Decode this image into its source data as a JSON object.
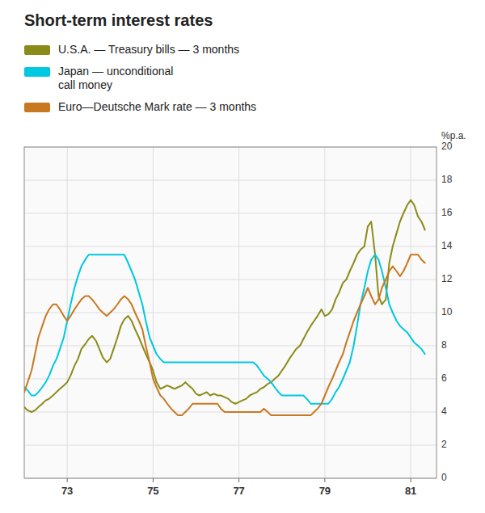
{
  "chart_data": {
    "type": "line",
    "title": "Short-term interest rates",
    "ylabel": "%p.a.",
    "xlim": [
      1972.0,
      1981.6
    ],
    "xticks": [
      {
        "value": 1973,
        "label": "73"
      },
      {
        "value": 1975,
        "label": "75"
      },
      {
        "value": 1977,
        "label": "77"
      },
      {
        "value": 1979,
        "label": "79"
      },
      {
        "value": 1981,
        "label": "81"
      }
    ],
    "ylim": [
      0,
      20
    ],
    "yticks": [
      0,
      2,
      4,
      6,
      8,
      10,
      12,
      14,
      16,
      18,
      20
    ],
    "grid": true,
    "legend": "top",
    "x": [
      1972.0,
      1972.08,
      1972.17,
      1972.25,
      1972.33,
      1972.42,
      1972.5,
      1972.58,
      1972.67,
      1972.75,
      1972.83,
      1972.92,
      1973.0,
      1973.08,
      1973.17,
      1973.25,
      1973.33,
      1973.42,
      1973.5,
      1973.58,
      1973.67,
      1973.75,
      1973.83,
      1973.92,
      1974.0,
      1974.08,
      1974.17,
      1974.25,
      1974.33,
      1974.42,
      1974.5,
      1974.58,
      1974.67,
      1974.75,
      1974.83,
      1974.92,
      1975.0,
      1975.08,
      1975.17,
      1975.25,
      1975.33,
      1975.42,
      1975.5,
      1975.58,
      1975.67,
      1975.75,
      1975.83,
      1975.92,
      1976.0,
      1976.08,
      1976.17,
      1976.25,
      1976.33,
      1976.42,
      1976.5,
      1976.58,
      1976.67,
      1976.75,
      1976.83,
      1976.92,
      1977.0,
      1977.08,
      1977.17,
      1977.25,
      1977.33,
      1977.42,
      1977.5,
      1977.58,
      1977.67,
      1977.75,
      1977.83,
      1977.92,
      1978.0,
      1978.08,
      1978.17,
      1978.25,
      1978.33,
      1978.42,
      1978.5,
      1978.58,
      1978.67,
      1978.75,
      1978.83,
      1978.92,
      1979.0,
      1979.08,
      1979.17,
      1979.25,
      1979.33,
      1979.42,
      1979.5,
      1979.58,
      1979.67,
      1979.75,
      1979.83,
      1979.92,
      1980.0,
      1980.08,
      1980.17,
      1980.25,
      1980.33,
      1980.42,
      1980.5,
      1980.58,
      1980.67,
      1980.75,
      1980.83,
      1980.92,
      1981.0,
      1981.08,
      1981.17,
      1981.25,
      1981.33
    ],
    "series": [
      {
        "name": "U.S.A. — Treasury bills — 3 months",
        "color": "#8b8b1a",
        "values": [
          4.3,
          4.1,
          4.0,
          4.1,
          4.3,
          4.5,
          4.7,
          4.8,
          5.0,
          5.2,
          5.4,
          5.6,
          5.8,
          6.2,
          6.8,
          7.2,
          7.8,
          8.1,
          8.4,
          8.6,
          8.3,
          7.8,
          7.3,
          7.0,
          7.2,
          7.8,
          8.5,
          9.2,
          9.6,
          9.8,
          9.5,
          9.0,
          8.5,
          8.0,
          7.5,
          7.0,
          6.5,
          5.8,
          5.4,
          5.5,
          5.6,
          5.5,
          5.4,
          5.5,
          5.6,
          5.8,
          5.6,
          5.4,
          5.1,
          5.0,
          5.1,
          5.2,
          5.0,
          5.1,
          5.0,
          5.0,
          4.9,
          4.8,
          4.6,
          4.5,
          4.6,
          4.7,
          4.8,
          5.0,
          5.1,
          5.2,
          5.4,
          5.5,
          5.7,
          5.8,
          6.0,
          6.2,
          6.5,
          6.8,
          7.2,
          7.5,
          7.8,
          8.0,
          8.4,
          8.8,
          9.2,
          9.5,
          9.8,
          10.2,
          9.8,
          9.9,
          10.2,
          10.8,
          11.2,
          11.8,
          12.0,
          12.5,
          13.0,
          13.5,
          13.8,
          14.0,
          15.2,
          15.5,
          13.5,
          11.0,
          10.5,
          10.8,
          13.0,
          14.0,
          14.8,
          15.5,
          16.0,
          16.5,
          16.8,
          16.5,
          15.8,
          15.5,
          15.0
        ]
      },
      {
        "name": "Japan — unconditional\ncall money",
        "color": "#00c8e0",
        "values": [
          5.5,
          5.3,
          5.0,
          5.0,
          5.2,
          5.5,
          5.8,
          6.2,
          6.8,
          7.2,
          7.8,
          8.5,
          9.5,
          10.5,
          11.5,
          12.2,
          12.8,
          13.2,
          13.5,
          13.5,
          13.5,
          13.5,
          13.5,
          13.5,
          13.5,
          13.5,
          13.5,
          13.5,
          13.5,
          13.0,
          12.5,
          12.0,
          11.2,
          10.5,
          9.5,
          8.5,
          8.0,
          7.5,
          7.2,
          7.0,
          7.0,
          7.0,
          7.0,
          7.0,
          7.0,
          7.0,
          7.0,
          7.0,
          7.0,
          7.0,
          7.0,
          7.0,
          7.0,
          7.0,
          7.0,
          7.0,
          7.0,
          7.0,
          7.0,
          7.0,
          7.0,
          7.0,
          7.0,
          7.0,
          7.0,
          6.8,
          6.5,
          6.2,
          6.0,
          5.8,
          5.5,
          5.2,
          5.0,
          5.0,
          5.0,
          5.0,
          5.0,
          5.0,
          5.0,
          4.8,
          4.5,
          4.5,
          4.5,
          4.5,
          4.5,
          4.5,
          4.8,
          5.2,
          5.5,
          6.0,
          6.5,
          7.0,
          8.0,
          9.2,
          10.5,
          11.5,
          12.5,
          13.2,
          13.5,
          13.2,
          12.5,
          11.5,
          10.5,
          10.0,
          9.5,
          9.2,
          9.0,
          8.8,
          8.5,
          8.2,
          8.0,
          7.8,
          7.5
        ]
      },
      {
        "name": "Euro—Deutsche Mark rate — 3 months",
        "color": "#c87820",
        "values": [
          5.2,
          5.8,
          6.5,
          7.5,
          8.5,
          9.2,
          9.8,
          10.2,
          10.5,
          10.5,
          10.2,
          9.8,
          9.5,
          9.8,
          10.2,
          10.5,
          10.8,
          11.0,
          11.0,
          10.8,
          10.5,
          10.2,
          10.0,
          9.8,
          10.0,
          10.2,
          10.5,
          10.8,
          11.0,
          10.8,
          10.5,
          10.0,
          9.5,
          9.0,
          8.0,
          7.0,
          6.0,
          5.5,
          5.0,
          4.8,
          4.5,
          4.2,
          4.0,
          3.8,
          3.8,
          4.0,
          4.2,
          4.5,
          4.5,
          4.5,
          4.5,
          4.5,
          4.5,
          4.5,
          4.5,
          4.2,
          4.0,
          4.0,
          4.0,
          4.0,
          4.0,
          4.0,
          4.0,
          4.0,
          4.0,
          4.0,
          4.0,
          4.2,
          4.0,
          3.8,
          3.8,
          3.8,
          3.8,
          3.8,
          3.8,
          3.8,
          3.8,
          3.8,
          3.8,
          3.8,
          3.8,
          4.0,
          4.2,
          4.5,
          5.0,
          5.5,
          6.0,
          6.5,
          7.0,
          7.5,
          8.2,
          8.8,
          9.5,
          10.0,
          10.5,
          11.0,
          11.5,
          11.0,
          10.5,
          10.8,
          11.5,
          12.0,
          12.5,
          12.8,
          12.5,
          12.2,
          12.5,
          13.0,
          13.5,
          13.5,
          13.5,
          13.2,
          13.0
        ]
      }
    ]
  }
}
